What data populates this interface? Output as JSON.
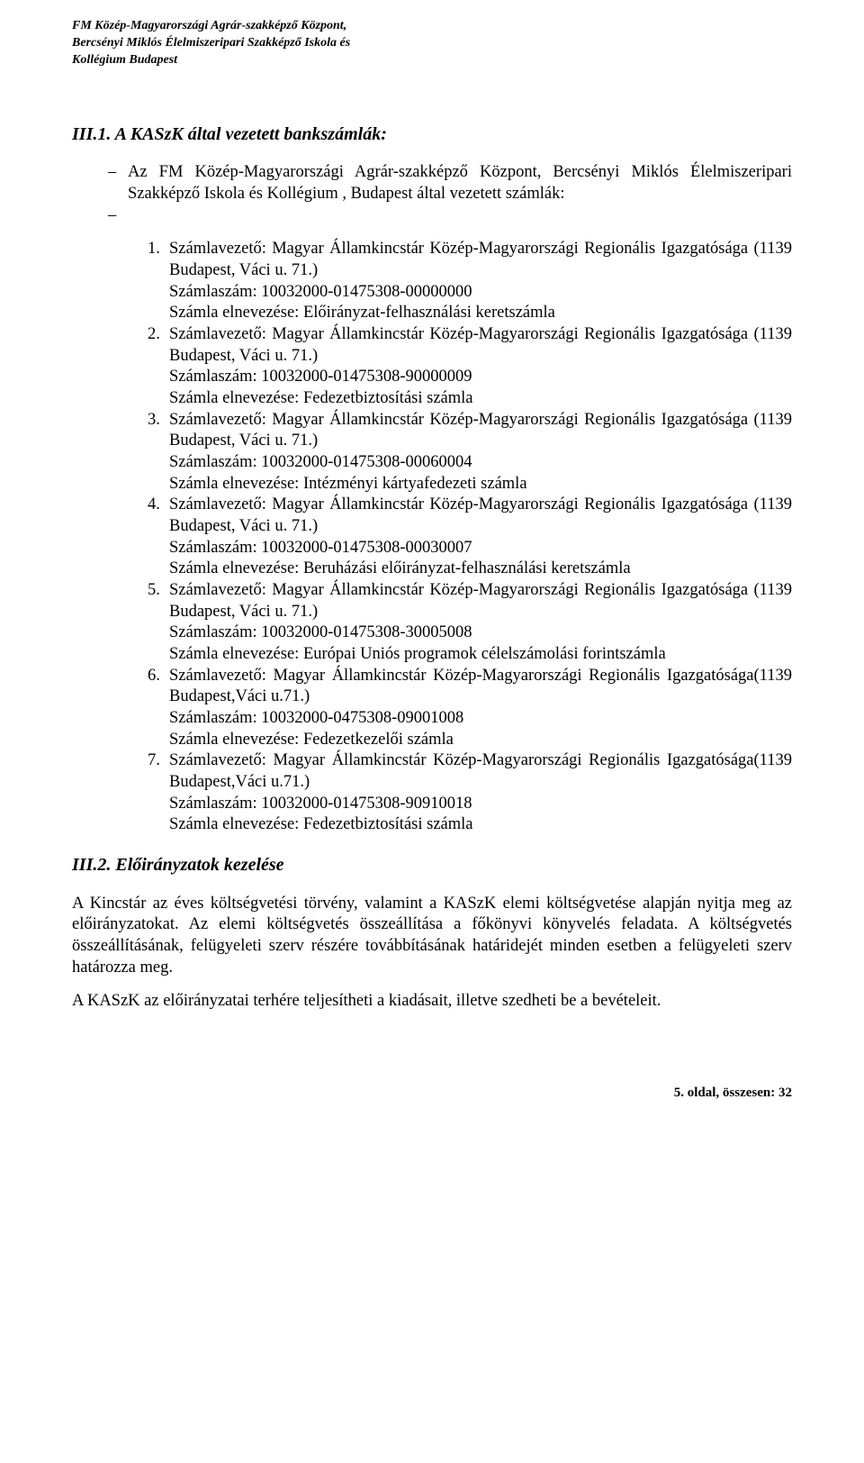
{
  "header": {
    "line1": "FM Közép-Magyarországi Agrár-szakképző Központ,",
    "line2": "Bercsényi Miklós Élelmiszeripari Szakképző Iskola és",
    "line3": "Kollégium  Budapest"
  },
  "section1": {
    "heading": "III.1. A KASzK által vezetett bankszámlák:",
    "intro": "Az FM Közép-Magyarországi Agrár-szakképző Központ, Bercsényi Miklós Élelmiszeripari Szakképző Iskola és  Kollégium , Budapest által vezetett számlák:",
    "dash": "–",
    "items": [
      {
        "n": "1.",
        "l1": "Számlavezető: Magyar Államkincstár Közép-Magyarországi Regionális Igazgatósága (1139 Budapest, Váci u. 71.)",
        "l2": "Számlaszám: 10032000-01475308-00000000",
        "l3": "Számla elnevezése: Előirányzat-felhasználási keretszámla"
      },
      {
        "n": "2.",
        "l1": "Számlavezető: Magyar Államkincstár Közép-Magyarországi Regionális Igazgatósága (1139 Budapest, Váci u. 71.)",
        "l2": "Számlaszám: 10032000-01475308-90000009",
        "l3": "Számla elnevezése: Fedezetbiztosítási számla"
      },
      {
        "n": "3.",
        "l1": "Számlavezető: Magyar Államkincstár Közép-Magyarországi Regionális Igazgatósága (1139 Budapest, Váci u. 71.)",
        "l2": "Számlaszám: 10032000-01475308-00060004",
        "l3": "Számla elnevezése: Intézményi kártyafedezeti számla"
      },
      {
        "n": "4.",
        "l1": "Számlavezető: Magyar Államkincstár Közép-Magyarországi Regionális Igazgatósága (1139 Budapest, Váci u. 71.)",
        "l2": "Számlaszám: 10032000-01475308-00030007",
        "l3": "Számla elnevezése: Beruházási előirányzat-felhasználási keretszámla"
      },
      {
        "n": "5.",
        "l1": "Számlavezető: Magyar Államkincstár Közép-Magyarországi Regionális Igazgatósága (1139 Budapest, Váci u. 71.)",
        "l2": "Számlaszám: 10032000-01475308-30005008",
        "l3": "Számla elnevezése: Európai Uniós programok célelszámolási forintszámla"
      },
      {
        "n": "6.",
        "l1": "Számlavezető: Magyar Államkincstár Közép-Magyarországi Regionális Igazgatósága(1139 Budapest,Váci u.71.)",
        "l2": "Számlaszám: 10032000-0475308-09001008",
        "l3": "Számla elnevezése: Fedezetkezelői számla"
      },
      {
        "n": "7.",
        "l1": "Számlavezető: Magyar Államkincstár Közép-Magyarországi Regionális Igazgatósága(1139 Budapest,Váci u.71.)",
        "l2": "Számlaszám: 10032000-01475308-90910018",
        "l3": "Számla elnevezése: Fedezetbiztosítási számla"
      }
    ]
  },
  "section2": {
    "heading": "III.2. Előirányzatok kezelése",
    "p1": "A Kincstár az éves költségvetési törvény, valamint a KASzK elemi költségvetése alapján nyitja meg az előirányzatokat. Az elemi költségvetés összeállítása a főkönyvi könyvelés feladata. A költségvetés összeállításának, felügyeleti szerv részére továbbításának határidejét minden esetben a felügyeleti szerv határozza meg.",
    "p2": "A KASzK az előirányzatai terhére teljesítheti a kiadásait, illetve szedheti be a bevételeit."
  },
  "footer": {
    "text": "5. oldal, összesen: 32"
  }
}
